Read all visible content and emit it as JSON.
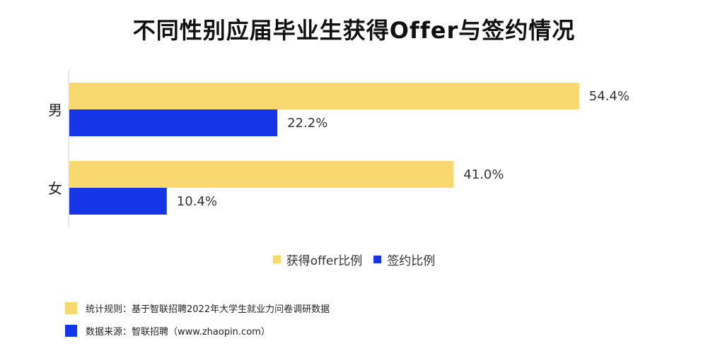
{
  "colors": {
    "offer": "#fad870",
    "sign": "#1436e6",
    "axis": "#cccccc"
  },
  "chart_data": {
    "type": "bar",
    "orientation": "horizontal",
    "title": "不同性别应届毕业生获得Offer与签约情况",
    "categories": [
      "男",
      "女"
    ],
    "series": [
      {
        "name": "获得offer比例",
        "values": [
          54.4,
          41.0
        ],
        "labels": [
          "54.4%",
          "41.0%"
        ]
      },
      {
        "name": "签约比例",
        "values": [
          22.2,
          10.4
        ],
        "labels": [
          "22.2%",
          "10.4%"
        ]
      }
    ],
    "xlim": [
      0,
      60
    ],
    "grid": false,
    "legend": "bottom"
  },
  "footnotes": [
    {
      "text": "统计规则：基于智联招聘2022年大学生就业力问卷调研数据",
      "color": "#fad870"
    },
    {
      "text": "数据来源：智联招聘（www.zhaopin.com）",
      "color": "#1436e6"
    }
  ]
}
